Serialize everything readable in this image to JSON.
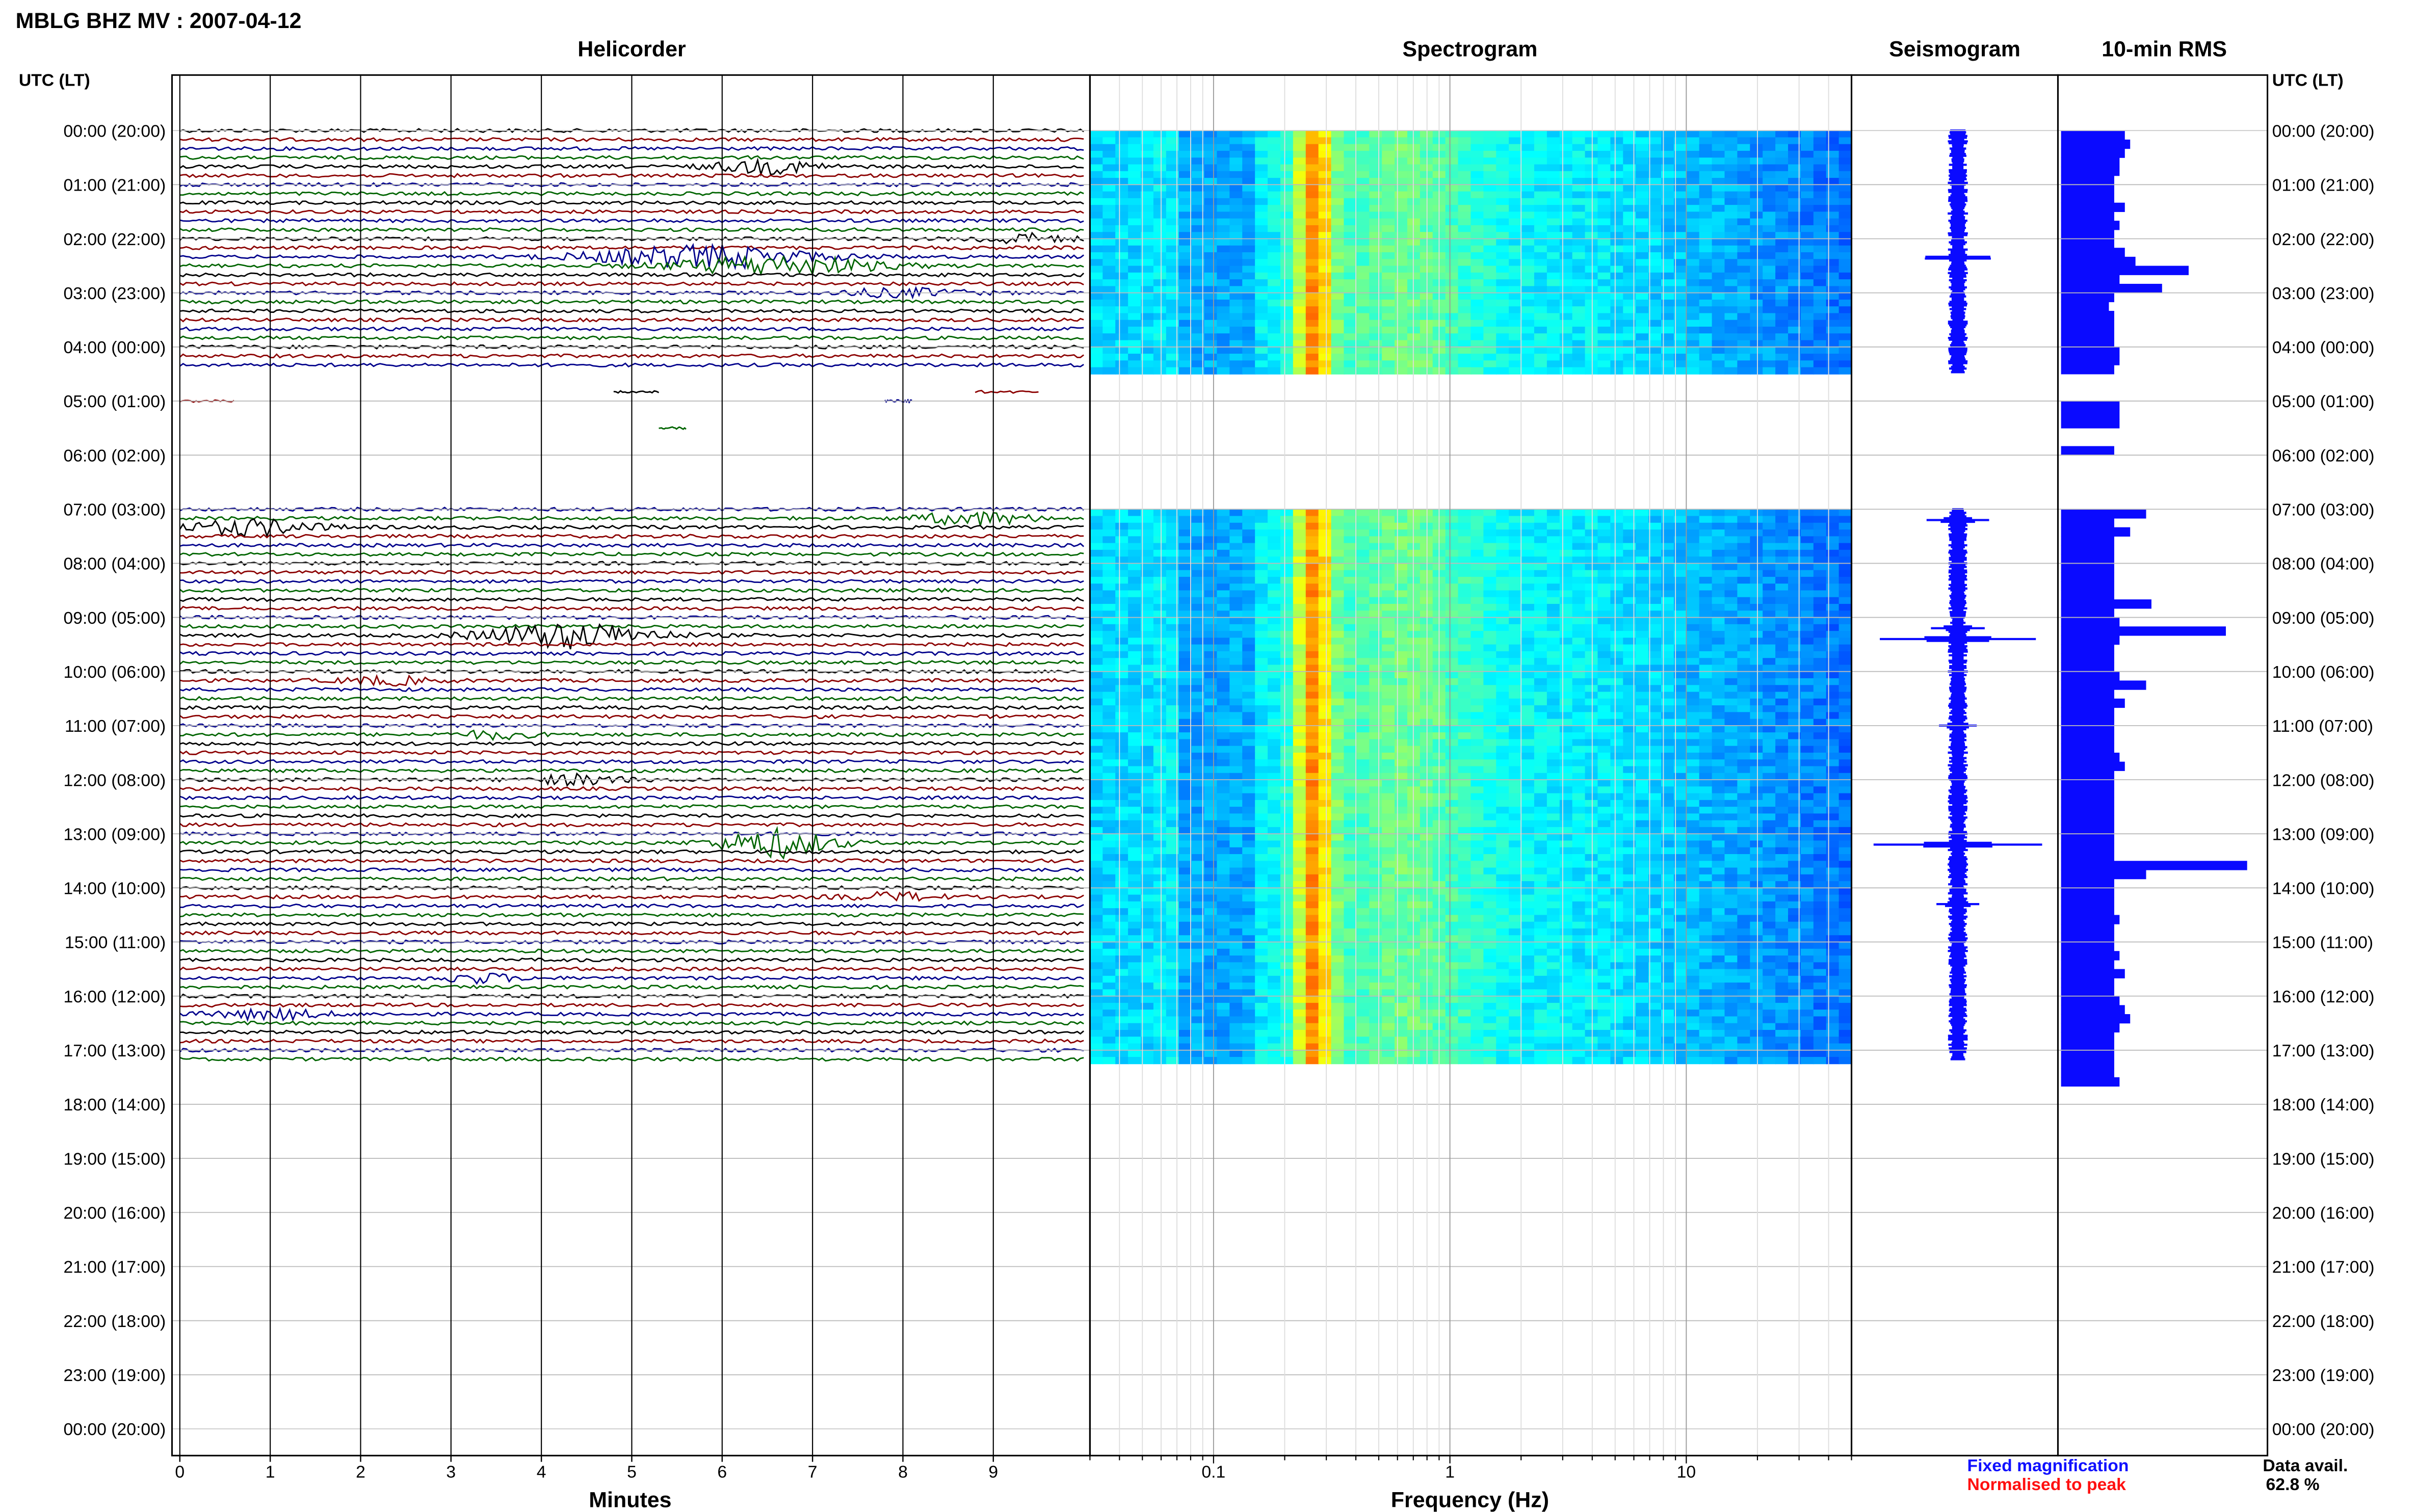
{
  "window": {
    "title": "MBLG BHZ MV : 2007-04-12"
  },
  "panels": {
    "helicorder_title": "Helicorder",
    "spectrogram_title": "Spectrogram",
    "seismogram_title": "Seismogram",
    "rms_title": "10-min RMS",
    "time_axis_header": "UTC (LT)",
    "helicorder_xlabel": "Minutes",
    "spectrogram_xlabel": "Frequency (Hz)"
  },
  "legend": {
    "fixed": "Fixed magnification",
    "normalised": "Normalised to peak",
    "fixed_color": "#1010ff",
    "normalised_color": "#ff1010"
  },
  "availability": {
    "label": "Data avail.",
    "value": "62.8 %"
  },
  "colors": {
    "trace_colors": [
      "#000000",
      "#8b0000",
      "#00008b",
      "#006400"
    ],
    "rms_bar": "#0a0aff",
    "seismogram": "#0a0aff"
  },
  "chart_data": {
    "type": "heatmap",
    "time_labels": [
      "00:00 (20:00)",
      "01:00 (21:00)",
      "02:00 (22:00)",
      "03:00 (23:00)",
      "04:00 (00:00)",
      "05:00 (01:00)",
      "06:00 (02:00)",
      "07:00 (03:00)",
      "08:00 (04:00)",
      "09:00 (05:00)",
      "10:00 (06:00)",
      "11:00 (07:00)",
      "12:00 (08:00)",
      "13:00 (09:00)",
      "14:00 (10:00)",
      "15:00 (11:00)",
      "16:00 (12:00)",
      "17:00 (13:00)",
      "18:00 (14:00)",
      "19:00 (15:00)",
      "20:00 (16:00)",
      "21:00 (17:00)",
      "22:00 (18:00)",
      "23:00 (19:00)",
      "00:00 (20:00)"
    ],
    "helicorder": {
      "x_ticks": [
        "0",
        "1",
        "2",
        "3",
        "4",
        "5",
        "6",
        "7",
        "8",
        "9"
      ],
      "xlabel": "Minutes",
      "xlim": [
        0,
        10
      ],
      "minutes_per_line": 10,
      "data_hours": [
        [
          0,
          4.5
        ],
        [
          7,
          17.17
        ]
      ]
    },
    "spectrogram": {
      "x_ticks": [
        "0.1",
        "1",
        "10"
      ],
      "x_scale": "log",
      "xlim": [
        0.03,
        50
      ],
      "xlabel": "Frequency (Hz)",
      "dominant_band_hz": [
        0.2,
        0.3
      ]
    },
    "rms_10min": {
      "start_hour": 0,
      "interval_min": 10,
      "values": [
        1.2,
        1.3,
        1.2,
        1.1,
        1.1,
        1.0,
        1.0,
        1.0,
        1.2,
        1.0,
        1.1,
        1.0,
        1.0,
        1.2,
        1.4,
        2.4,
        1.1,
        1.9,
        1.0,
        0.9,
        1.0,
        1.0,
        1.0,
        1.0,
        1.1,
        1.1,
        1.0,
        0.0,
        0.0,
        0.0,
        1.1,
        1.1,
        1.1,
        0.0,
        0.0,
        1.0,
        0.0,
        0.0,
        0.0,
        0.0,
        0.0,
        0.0,
        1.6,
        1.0,
        1.3,
        1.0,
        1.0,
        1.0,
        1.0,
        1.0,
        1.0,
        1.0,
        1.7,
        1.0,
        1.1,
        3.1,
        1.1,
        1.0,
        1.0,
        1.0,
        1.1,
        1.6,
        1.0,
        1.2,
        1.0,
        1.0,
        1.0,
        1.0,
        1.0,
        1.1,
        1.2,
        1.0,
        1.0,
        1.0,
        1.0,
        1.0,
        1.0,
        1.0,
        1.0,
        1.0,
        1.0,
        3.5,
        1.6,
        1.0,
        1.0,
        1.0,
        1.0,
        1.1,
        1.0,
        1.0,
        1.0,
        1.1,
        1.0,
        1.2,
        1.0,
        1.0,
        1.1,
        1.2,
        1.3,
        1.1,
        1.0,
        1.0,
        1.0,
        1.0,
        1.0,
        1.1
      ]
    },
    "seismogram": {
      "max_amplitude_hours": [
        2.35,
        9.4,
        13.2
      ]
    }
  }
}
